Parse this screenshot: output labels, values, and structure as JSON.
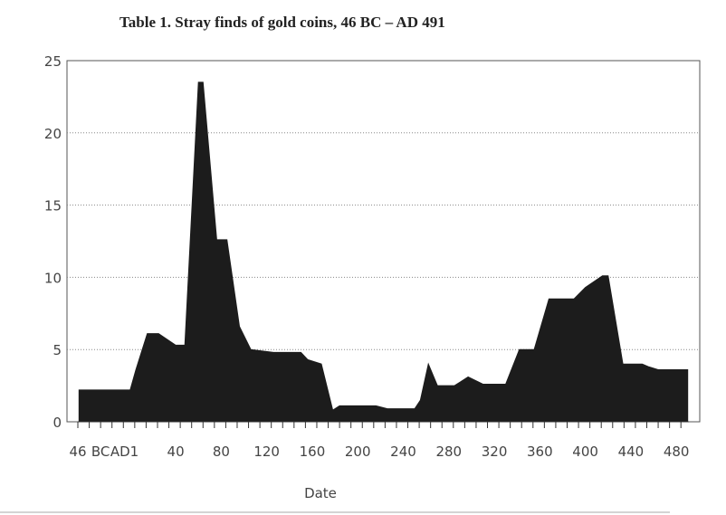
{
  "chart_data": {
    "type": "area",
    "title": "Table 1. Stray finds of gold coins, 46 BC – AD 491",
    "xlabel": "Date",
    "ylabel": "",
    "ylim": [
      0,
      25
    ],
    "yticks": [
      0,
      5,
      10,
      15,
      20,
      25
    ],
    "xlim": [
      -46,
      491
    ],
    "x_tick_labels": [
      {
        "x": -46,
        "label": "46"
      },
      {
        "x": -26,
        "label": "BC"
      },
      {
        "x": -5,
        "label": "AD1"
      },
      {
        "x": 40,
        "label": "40"
      },
      {
        "x": 80,
        "label": "80"
      },
      {
        "x": 120,
        "label": "120"
      },
      {
        "x": 160,
        "label": "160"
      },
      {
        "x": 200,
        "label": "200"
      },
      {
        "x": 240,
        "label": "240"
      },
      {
        "x": 280,
        "label": "280"
      },
      {
        "x": 320,
        "label": "320"
      },
      {
        "x": 360,
        "label": "360"
      },
      {
        "x": 400,
        "label": "400"
      },
      {
        "x": 440,
        "label": "440"
      },
      {
        "x": 480,
        "label": "480"
      }
    ],
    "grid": "horizontal dotted",
    "fill_color": "#1c1c1c",
    "series": [
      {
        "name": "",
        "x": [
          -45,
          0,
          0,
          5,
          15,
          25,
          40,
          48,
          60,
          64,
          76,
          85,
          96,
          106,
          126,
          150,
          156,
          168,
          178,
          184,
          216,
          226,
          250,
          255,
          262,
          270,
          280,
          285,
          297,
          310,
          330,
          342,
          355,
          368,
          390,
          400,
          415,
          420,
          433,
          450,
          456,
          464,
          490
        ],
        "y": [
          2.2,
          2.2,
          2.2,
          3.6,
          6.1,
          6.1,
          5.3,
          5.3,
          23.5,
          23.5,
          12.6,
          12.6,
          6.6,
          5.0,
          4.8,
          4.8,
          4.3,
          4.0,
          0.8,
          1.1,
          1.1,
          0.9,
          0.9,
          1.5,
          4.0,
          2.5,
          2.5,
          2.5,
          3.1,
          2.6,
          2.6,
          5.0,
          5.0,
          8.5,
          8.5,
          9.3,
          10.1,
          10.1,
          4.0,
          4.0,
          3.8,
          3.6,
          3.6
        ]
      }
    ]
  }
}
